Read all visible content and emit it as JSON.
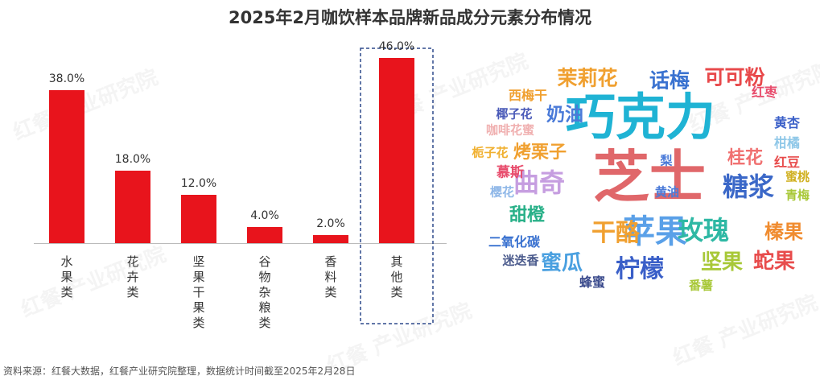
{
  "title": "2025年2月咖饮样本品牌新品成分元素分布情况",
  "watermark_text": "红餐 产业研究院",
  "source": "资料来源：红餐大数据，红餐产业研究院整理，数据统计时间截至2025年2月28日",
  "colors": {
    "bar": "#e8141c",
    "highlight_border": "#2e4a8c",
    "axis": "#bbbbbb"
  },
  "chart_data": {
    "type": "bar",
    "title": "2025年2月咖饮样本品牌新品成分元素分布情况",
    "categories": [
      "水果类",
      "花卉类",
      "坚果干果类",
      "谷物杂粮类",
      "香料类",
      "其他类"
    ],
    "values": [
      38.0,
      18.0,
      12.0,
      4.0,
      2.0,
      46.0
    ],
    "value_labels": [
      "38.0%",
      "18.0%",
      "12.0%",
      "4.0%",
      "2.0%",
      "46.0%"
    ],
    "ylim": [
      0,
      50
    ],
    "highlighted_category": "其他类",
    "grid": false
  },
  "word_cloud": {
    "words": [
      {
        "text": "巧克力",
        "color": "#1fb3d4"
      },
      {
        "text": "芝士",
        "color": "#e0676a"
      },
      {
        "text": "曲奇",
        "color": "#c69ee0"
      },
      {
        "text": "苹果",
        "color": "#5aa0e8"
      },
      {
        "text": "糖浆",
        "color": "#3b68c8"
      },
      {
        "text": "干酪",
        "color": "#f0a030"
      },
      {
        "text": "玫瑰",
        "color": "#2eb8a4"
      },
      {
        "text": "柠檬",
        "color": "#3a5fc8"
      },
      {
        "text": "茉莉花",
        "color": "#f0a030"
      },
      {
        "text": "话梅",
        "color": "#3a72d0"
      },
      {
        "text": "可可粉",
        "color": "#e8484a"
      },
      {
        "text": "奶油",
        "color": "#4a7ad8"
      },
      {
        "text": "烤栗子",
        "color": "#f0a030"
      },
      {
        "text": "桂花",
        "color": "#f07070"
      },
      {
        "text": "甜橙",
        "color": "#28b088"
      },
      {
        "text": "榛果",
        "color": "#f08c30"
      },
      {
        "text": "蛇果",
        "color": "#e84c4c"
      },
      {
        "text": "坚果",
        "color": "#a8c838"
      },
      {
        "text": "蜜瓜",
        "color": "#4aa0e0"
      },
      {
        "text": "西梅干",
        "color": "#f0a030"
      },
      {
        "text": "红枣",
        "color": "#e84c6c"
      },
      {
        "text": "椰子花",
        "color": "#4a5ab8"
      },
      {
        "text": "咖啡花蜜",
        "color": "#f0b0b0"
      },
      {
        "text": "黄杏",
        "color": "#3a5fc8"
      },
      {
        "text": "柑橘",
        "color": "#90c8e8"
      },
      {
        "text": "栀子花",
        "color": "#f0b030"
      },
      {
        "text": "梨",
        "color": "#4a7ad8"
      },
      {
        "text": "红豆",
        "color": "#e84c4c"
      },
      {
        "text": "慕斯",
        "color": "#e84c6c"
      },
      {
        "text": "蜜桃",
        "color": "#d0b020"
      },
      {
        "text": "樱花",
        "color": "#90b8e8"
      },
      {
        "text": "黄油",
        "color": "#4a7ad8"
      },
      {
        "text": "青梅",
        "color": "#a8c838"
      },
      {
        "text": "二氧化碳",
        "color": "#3a72d0"
      },
      {
        "text": "迷迭香",
        "color": "#4a5a8c"
      },
      {
        "text": "蜂蜜",
        "color": "#3a4a8c"
      },
      {
        "text": "番薯",
        "color": "#a8c838"
      }
    ]
  }
}
